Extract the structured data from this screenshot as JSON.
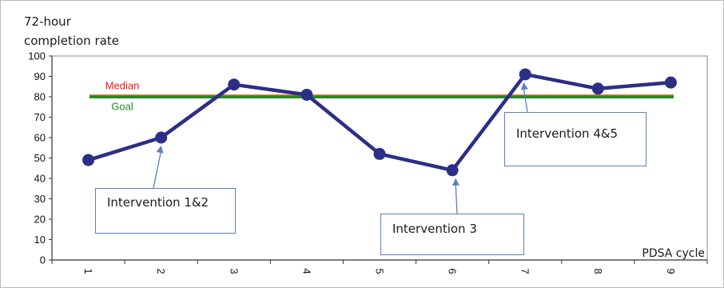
{
  "chart_data": {
    "type": "line",
    "ylabel_lines": [
      "72-hour",
      "completion rate"
    ],
    "xlabel": "PDSA cycle",
    "categories": [
      "1",
      "2",
      "3",
      "4",
      "5",
      "6",
      "7",
      "8",
      "9"
    ],
    "series": [
      {
        "values": [
          49,
          60,
          86,
          81,
          52,
          44,
          91,
          84,
          87
        ],
        "color": "#2b2f85"
      }
    ],
    "reference_lines": [
      {
        "name": "Median",
        "value": 80.5,
        "color": "#b0662a",
        "label_color": "#e8191a"
      },
      {
        "name": "Goal",
        "value": 79.8,
        "color": "#1e8c1e",
        "label_color": "#1e8c1e"
      }
    ],
    "yticks": [
      0,
      10,
      20,
      30,
      40,
      50,
      60,
      70,
      80,
      90,
      100
    ],
    "ylim": [
      0,
      100
    ],
    "grid": false,
    "annotations": [
      {
        "text": "Intervention 1&2",
        "target_index": 1
      },
      {
        "text": "Intervention 3",
        "target_index": 5
      },
      {
        "text": "Intervention 4&5",
        "target_index": 6
      }
    ]
  }
}
